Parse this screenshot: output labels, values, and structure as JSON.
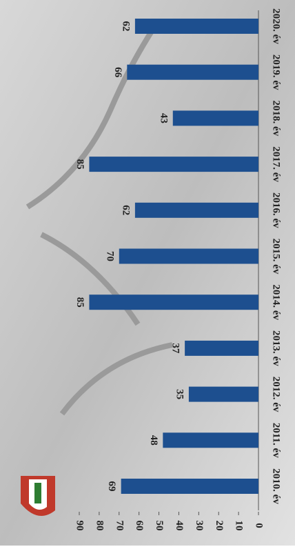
{
  "chart_data": {
    "type": "bar",
    "categories": [
      "2010. év",
      "2011. év",
      "2012. év",
      "2013. év",
      "2014. év",
      "2015. év",
      "2016. év",
      "2017. év",
      "2018. év",
      "2019. év",
      "2020. év"
    ],
    "values": [
      69,
      48,
      35,
      37,
      85,
      70,
      62,
      85,
      43,
      66,
      62
    ],
    "color": "#1d4f8f",
    "ylim": [
      0,
      90
    ],
    "yticks": [
      0,
      10,
      20,
      30,
      40,
      50,
      60,
      70,
      80,
      90
    ]
  }
}
